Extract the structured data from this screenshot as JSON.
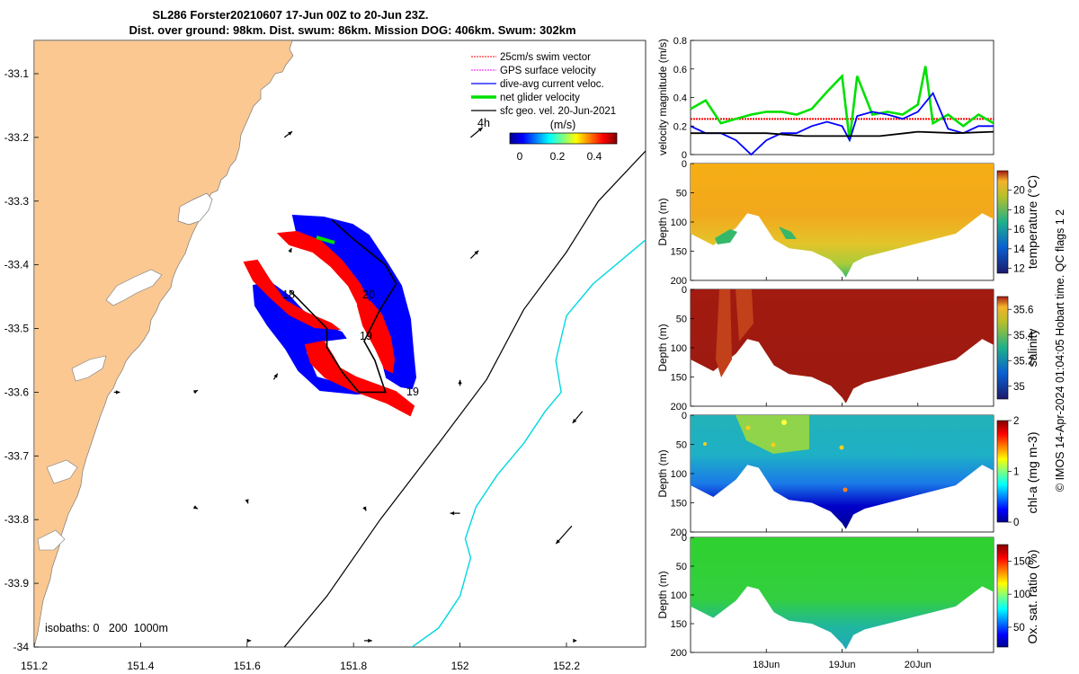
{
  "title_line1": "SL286 Forster20210607 17-Jun 00Z to 20-Jun 23Z.",
  "title_line2": "Dist. over ground: 98km. Dist. swum: 86km. Mission DOG: 406km. Swum: 302km",
  "colors": {
    "land": "#fbc892",
    "swim_vector": "#ff0000",
    "gps_velocity": "#ff00ff",
    "dive_avg_current": "#0000ff",
    "net_glider_velocity": "#00e000",
    "sfc_geo_velocity": "#000000",
    "isobath_200": "#000000",
    "isobath_1000": "#00d8e0"
  },
  "chart_data": [
    {
      "type": "map",
      "name": "track_map",
      "xticks": [
        "151.2",
        "151.4",
        "151.6",
        "151.8",
        "152",
        "152.2"
      ],
      "yticks": [
        "-33.1",
        "-33.2",
        "-33.3",
        "-33.4",
        "-33.5",
        "-33.6",
        "-33.7",
        "-33.8",
        "-33.9",
        "-34"
      ],
      "xlim": [
        151.2,
        152.35
      ],
      "ylim": [
        -34.0,
        -33.05
      ],
      "legend": [
        {
          "label": "25cm/s swim vector",
          "color": "#ff0000"
        },
        {
          "label": "GPS surface velocity",
          "color": "#ff00ff"
        },
        {
          "label": "dive-avg current veloc.",
          "color": "#0000ff"
        },
        {
          "label": "net glider velocity",
          "color": "#00e000"
        },
        {
          "label": "sfc geo. vel. 20-Jun-2021",
          "color": "#000000"
        }
      ],
      "legend_placement": "top-right",
      "colorbar": {
        "label": "(m/s)",
        "ticks": [
          "0",
          "0.2",
          "0.4"
        ],
        "range": [
          0,
          0.48
        ]
      },
      "annotations": [
        "4h",
        "18",
        "19",
        "20",
        "19"
      ],
      "isobaths_text": "isobaths: 0   200  1000m",
      "isobath_200": [
        [
          151.67,
          -34.0
        ],
        [
          151.75,
          -33.92
        ],
        [
          151.85,
          -33.8
        ],
        [
          151.96,
          -33.68
        ],
        [
          152.05,
          -33.58
        ],
        [
          152.12,
          -33.47
        ],
        [
          152.2,
          -33.38
        ],
        [
          152.26,
          -33.3
        ],
        [
          152.35,
          -33.22
        ]
      ],
      "isobath_1000": [
        [
          151.91,
          -34.0
        ],
        [
          151.96,
          -33.97
        ],
        [
          152.0,
          -33.92
        ],
        [
          152.02,
          -33.86
        ],
        [
          152.01,
          -33.83
        ],
        [
          152.03,
          -33.78
        ],
        [
          152.07,
          -33.73
        ],
        [
          152.12,
          -33.68
        ],
        [
          152.16,
          -33.63
        ],
        [
          152.19,
          -33.6
        ],
        [
          152.18,
          -33.55
        ],
        [
          152.2,
          -33.48
        ],
        [
          152.25,
          -33.43
        ],
        [
          152.35,
          -33.36
        ]
      ],
      "geo_vectors": [
        {
          "lon": 151.35,
          "lat": -33.6,
          "u": 0.3,
          "v": 0.0
        },
        {
          "lon": 151.5,
          "lat": -33.6,
          "u": 0.2,
          "v": 0.1
        },
        {
          "lon": 151.65,
          "lat": -33.58,
          "u": 0.2,
          "v": 0.3
        },
        {
          "lon": 151.67,
          "lat": -33.2,
          "u": 0.4,
          "v": 0.3
        },
        {
          "lon": 151.68,
          "lat": -33.38,
          "u": 0.1,
          "v": 0.2
        },
        {
          "lon": 152.02,
          "lat": -33.2,
          "u": 0.6,
          "v": 0.5
        },
        {
          "lon": 152.02,
          "lat": -33.39,
          "u": 0.4,
          "v": 0.4
        },
        {
          "lon": 151.82,
          "lat": -33.78,
          "u": 0.1,
          "v": -0.2
        },
        {
          "lon": 151.5,
          "lat": -33.78,
          "u": 0.2,
          "v": -0.1
        },
        {
          "lon": 151.6,
          "lat": -33.77,
          "u": 0.05,
          "v": -0.15
        },
        {
          "lon": 152.0,
          "lat": -33.79,
          "u": -0.5,
          "v": 0.0
        },
        {
          "lon": 152.0,
          "lat": -33.59,
          "u": 0.0,
          "v": 0.3
        },
        {
          "lon": 152.23,
          "lat": -33.63,
          "u": -0.5,
          "v": -0.6
        },
        {
          "lon": 152.21,
          "lat": -33.81,
          "u": -0.8,
          "v": -0.9
        },
        {
          "lon": 151.6,
          "lat": -33.99,
          "u": 0.2,
          "v": 0.0
        },
        {
          "lon": 151.82,
          "lat": -33.99,
          "u": 0.4,
          "v": 0.0
        },
        {
          "lon": 152.22,
          "lat": -33.99,
          "u": 0.0,
          "v": 0.0
        }
      ],
      "track": [
        [
          151.68,
          -33.44
        ],
        [
          151.75,
          -33.5
        ],
        [
          151.75,
          -33.53
        ],
        [
          151.78,
          -33.57
        ],
        [
          151.81,
          -33.6
        ],
        [
          151.86,
          -33.6
        ],
        [
          151.84,
          -33.55
        ],
        [
          151.82,
          -33.52
        ],
        [
          151.85,
          -33.47
        ],
        [
          151.88,
          -33.43
        ],
        [
          151.86,
          -33.4
        ],
        [
          151.8,
          -33.36
        ],
        [
          151.76,
          -33.33
        ]
      ]
    },
    {
      "type": "line",
      "name": "velocity_panel",
      "ylabel": "velocity magnitude (m/s)",
      "yticks": [
        "0",
        "0.2",
        "0.4",
        "0.6",
        "0.8"
      ],
      "ylim": [
        0,
        0.8
      ],
      "xlim": [
        17.0,
        21.0
      ],
      "series": [
        {
          "color": "#ff0000",
          "constant": 0.25
        },
        {
          "color": "#00e000",
          "x": [
            17.0,
            17.2,
            17.4,
            17.6,
            17.8,
            18.0,
            18.2,
            18.4,
            18.6,
            18.8,
            19.0,
            19.1,
            19.2,
            19.4,
            19.6,
            19.8,
            20.0,
            20.1,
            20.2,
            20.4,
            20.6,
            20.8,
            21.0
          ],
          "y": [
            0.32,
            0.38,
            0.22,
            0.25,
            0.28,
            0.3,
            0.3,
            0.28,
            0.32,
            0.44,
            0.55,
            0.1,
            0.55,
            0.28,
            0.3,
            0.28,
            0.35,
            0.62,
            0.22,
            0.28,
            0.2,
            0.28,
            0.22
          ]
        },
        {
          "color": "#0000ff",
          "x": [
            17.0,
            17.2,
            17.4,
            17.6,
            17.8,
            18.0,
            18.2,
            18.4,
            18.6,
            18.8,
            19.0,
            19.1,
            19.2,
            19.4,
            19.6,
            19.8,
            20.0,
            20.2,
            20.4,
            20.6,
            20.8,
            21.0
          ],
          "y": [
            0.2,
            0.15,
            0.15,
            0.1,
            0.0,
            0.1,
            0.15,
            0.15,
            0.2,
            0.23,
            0.2,
            0.1,
            0.27,
            0.3,
            0.28,
            0.25,
            0.3,
            0.43,
            0.18,
            0.15,
            0.2,
            0.2
          ]
        },
        {
          "color": "#000000",
          "x": [
            17.0,
            17.5,
            18.0,
            18.5,
            19.0,
            19.5,
            20.0,
            20.5,
            21.0
          ],
          "y": [
            0.15,
            0.15,
            0.15,
            0.13,
            0.13,
            0.13,
            0.16,
            0.15,
            0.16
          ]
        }
      ]
    },
    {
      "type": "heatmap",
      "name": "temperature",
      "ylabel": "Depth (m)",
      "yticks": [
        "0",
        "50",
        "100",
        "150",
        "200"
      ],
      "clabel": "temperature (°C)",
      "cticks": [
        "12",
        "14",
        "16",
        "18",
        "20"
      ],
      "crange": [
        11.5,
        22
      ]
    },
    {
      "type": "heatmap",
      "name": "salinity",
      "ylabel": "Depth (m)",
      "yticks": [
        "0",
        "50",
        "100",
        "150",
        "200"
      ],
      "clabel": "salinity",
      "cticks": [
        "35",
        "35.2",
        "35.4",
        "35.6"
      ],
      "crange": [
        34.9,
        35.7
      ]
    },
    {
      "type": "heatmap",
      "name": "chlorophyll",
      "ylabel": "Depth (m)",
      "yticks": [
        "0",
        "50",
        "100",
        "150",
        "200"
      ],
      "clabel": "chl-a (mg m-3)",
      "cticks": [
        "0",
        "1",
        "2"
      ],
      "crange": [
        0,
        2
      ]
    },
    {
      "type": "heatmap",
      "name": "oxygen",
      "ylabel": "Depth (m)",
      "yticks": [
        "0",
        "50",
        "100",
        "150",
        "200"
      ],
      "clabel": "Ox. sat. ratio (%)",
      "cticks": [
        "50",
        "100",
        "150"
      ],
      "crange": [
        20,
        175
      ],
      "xticks": [
        "18Jun",
        "19Jun",
        "20Jun"
      ]
    }
  ],
  "bottom_depth_profile": {
    "x": [
      17.0,
      17.3,
      17.6,
      17.75,
      17.9,
      18.1,
      18.3,
      18.6,
      18.85,
      19.0,
      19.05,
      19.15,
      19.3,
      19.6,
      19.9,
      20.2,
      20.5,
      20.7,
      20.85,
      21.0
    ],
    "depth": [
      120,
      140,
      110,
      85,
      90,
      130,
      145,
      150,
      165,
      185,
      195,
      170,
      160,
      150,
      140,
      130,
      120,
      100,
      85,
      95
    ]
  },
  "footer": "© IMOS 14-Apr-2024 01:04:05 Hobart time. QC flags 1  2"
}
